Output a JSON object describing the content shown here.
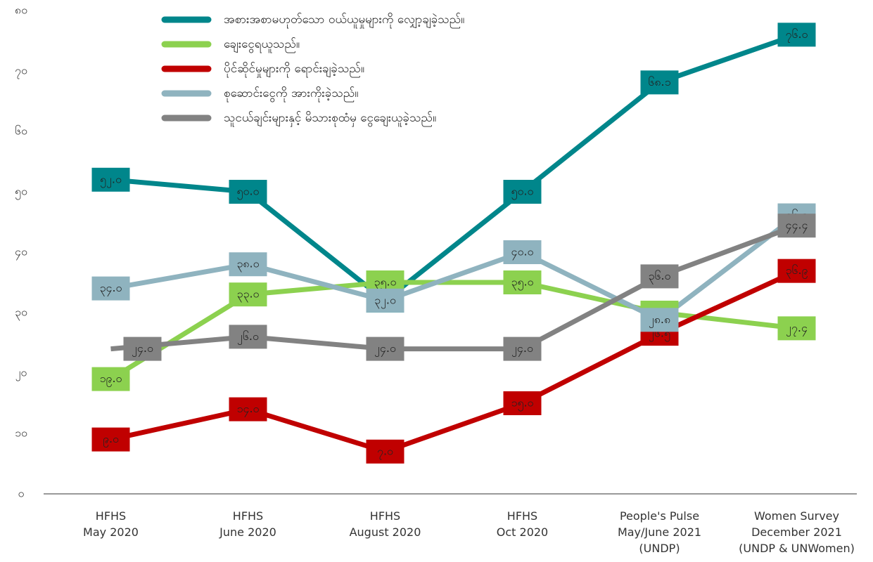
{
  "chart_data": {
    "type": "line",
    "categories": [
      [
        "HFHS",
        "May 2020"
      ],
      [
        "HFHS",
        "June 2020"
      ],
      [
        "HFHS",
        "August 2020"
      ],
      [
        "HFHS",
        "Oct 2020"
      ],
      [
        "People's Pulse",
        "May/June 2021",
        "(UNDP)"
      ],
      [
        "Women Survey",
        "December 2021",
        "(UNDP & UNWomen)"
      ]
    ],
    "ylim": [
      0,
      80
    ],
    "yticks": [
      {
        "value": 0,
        "label": "၀"
      },
      {
        "value": 10,
        "label": "၁၀"
      },
      {
        "value": 20,
        "label": "၂၀"
      },
      {
        "value": 30,
        "label": "၃၀"
      },
      {
        "value": 40,
        "label": "၄၀"
      },
      {
        "value": 50,
        "label": "၅၀"
      },
      {
        "value": 60,
        "label": "၆၀"
      },
      {
        "value": 70,
        "label": "၇၀"
      },
      {
        "value": 80,
        "label": "၈၀"
      }
    ],
    "legend": "top",
    "series": [
      {
        "name": "အစားအစာမဟုတ်သော ဝယ်ယူမှုများကို လျှော့ချခဲ့သည်။",
        "color": "#00868b",
        "values": [
          52.0,
          50.0,
          32.0,
          50.0,
          68.1,
          76.0
        ],
        "value_labels": [
          "၅၂.၀",
          "၅၀.၀",
          "၃၂.၀",
          "၅၀.၀",
          "၆၈.၁",
          "၇၆.၀"
        ]
      },
      {
        "name": "ချေးငွေရယူသည်။",
        "color": "#8cd14f",
        "values": [
          19.0,
          33.0,
          35.0,
          35.0,
          30.0,
          27.4
        ],
        "value_labels": [
          "၁၉.၀",
          "၃၃.၀",
          "၃၅.၀",
          "၃၅.၀",
          "၃၀.၀",
          "၂၇.၄"
        ]
      },
      {
        "name": "ပိုင်ဆိုင်မှုများကို ရောင်းချခဲ့သည်။",
        "color": "#c00000",
        "values": [
          9.0,
          14.0,
          7.0,
          15.0,
          26.5,
          36.9
        ],
        "value_labels": [
          "၉.၀",
          "၁၄.၀",
          "၇.၀",
          "၁၅.၀",
          "၂၆.၅",
          "၃၆.၉"
        ]
      },
      {
        "name": "စုဆောင်းငွေကို အားကိုးခဲ့သည်။",
        "color": "#8fb3bf",
        "values": [
          34.0,
          38.0,
          32.0,
          40.0,
          28.8,
          46.1
        ],
        "value_labels": [
          "၃၄.၀",
          "၃၈.၀",
          "၃၂.၀",
          "၄၀.၀",
          "၂၈.၈",
          "၄၆.၁"
        ]
      },
      {
        "name": "သူငယ်ချင်းများနှင့် မိသားစုထံမှ ငွေချေးယူခဲ့သည်။",
        "color": "#828282",
        "values": [
          24.0,
          26.0,
          24.0,
          24.0,
          36.0,
          44.4
        ],
        "value_labels": [
          "၂၄.၀",
          "၂၆.၀",
          "၂၄.၀",
          "၂၄.၀",
          "၃၆.၀",
          "၄၄.၄"
        ]
      }
    ]
  }
}
